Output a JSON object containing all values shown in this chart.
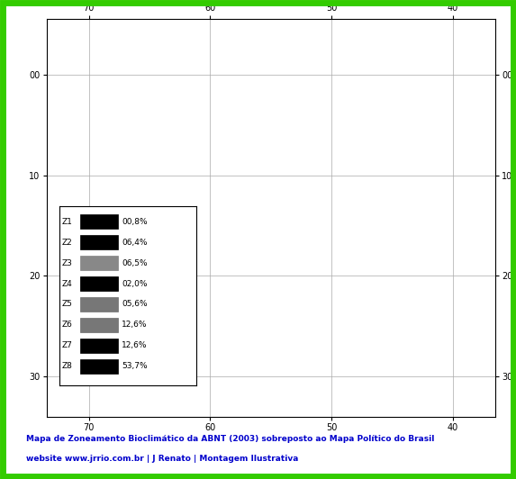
{
  "title_color": "#0000cc",
  "border_color": "#33cc00",
  "background_color": "#ffffff",
  "fig_width": 5.73,
  "fig_height": 5.32,
  "caption1": "Mapa de Zoneamento Bioclimático da ABNT (2003) sobreposto ao Mapa Político do Brasil",
  "caption2": "website www.jrrio.com.br | J Renato | Montagem Ilustrativa",
  "zones": [
    {
      "name": "Z1",
      "pct": "00,8%",
      "fc": "#000000",
      "ec": "#000000",
      "hatch": ""
    },
    {
      "name": "Z2",
      "pct": "06,4%",
      "fc": "#ffffff",
      "ec": "#000000",
      "hatch": "||||"
    },
    {
      "name": "Z3",
      "pct": "06,5%",
      "fc": "#cccccc",
      "ec": "#888888",
      "hatch": "...."
    },
    {
      "name": "Z4",
      "pct": "02,0%",
      "fc": "#444444",
      "ec": "#000000",
      "hatch": "...."
    },
    {
      "name": "Z5",
      "pct": "05,6%",
      "fc": "#aaaaaa",
      "ec": "#777777",
      "hatch": "+++"
    },
    {
      "name": "Z6",
      "pct": "12,6%",
      "fc": "#999999",
      "ec": "#777777",
      "hatch": "...."
    },
    {
      "name": "Z7",
      "pct": "12,6%",
      "fc": "#ffffff",
      "ec": "#000000",
      "hatch": "||||"
    },
    {
      "name": "Z8",
      "pct": "53,7%",
      "fc": "#ffffff",
      "ec": "#000000",
      "hatch": "----"
    }
  ],
  "xlim_left": 73.5,
  "xlim_right": 36.5,
  "ylim_bottom": -34.0,
  "ylim_top": 5.5,
  "xticks": [
    70,
    60,
    50,
    40
  ],
  "yticks": [
    0,
    -10,
    -20,
    -30
  ],
  "xticklabels": [
    "70",
    "60",
    "50",
    "40"
  ],
  "yticklabels": [
    "00",
    "10",
    "20",
    "30"
  ]
}
